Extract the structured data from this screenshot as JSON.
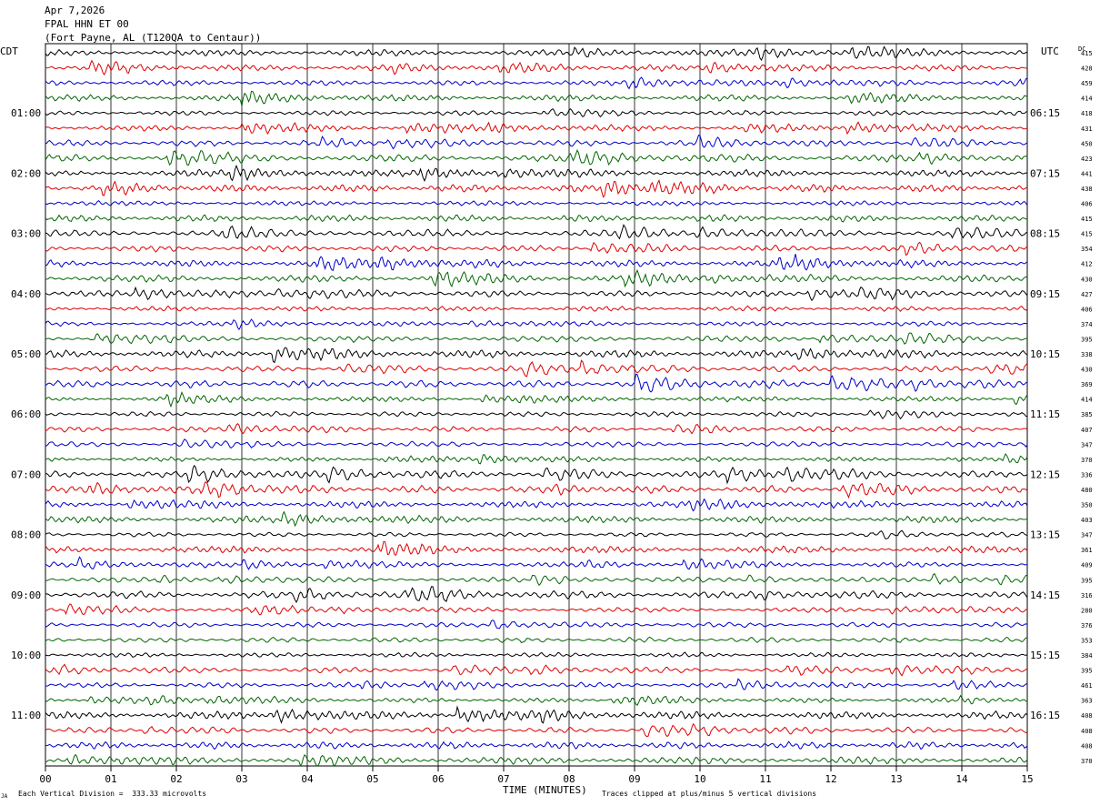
{
  "header": {
    "date": "Apr 7,2026",
    "station": "FPAL HHN ET 00",
    "location": "(Fort Payne, AL (T120QA to Centaur))"
  },
  "labels": {
    "left_tz": "CDT",
    "right_tz": "UTC",
    "dc": "DC",
    "xlabel": "TIME (MINUTES)",
    "scale_note": "Each Vertical Division =  333.33 microvolts",
    "clip_note": "Traces clipped at plus/minus 5 vertical divisions",
    "corner_mark": "JA"
  },
  "chart_data": {
    "type": "line",
    "xlim": [
      0,
      15
    ],
    "x_ticks": [
      "00",
      "01",
      "02",
      "03",
      "04",
      "05",
      "06",
      "07",
      "08",
      "09",
      "10",
      "11",
      "12",
      "13",
      "14",
      "15"
    ],
    "left_hour_labels": [
      "01:00",
      "02:00",
      "03:00",
      "04:00",
      "05:00",
      "06:00",
      "07:00",
      "08:00",
      "09:00",
      "10:00",
      "11:00"
    ],
    "right_hour_labels": [
      "06:15",
      "07:15",
      "08:15",
      "09:15",
      "10:15",
      "11:15",
      "12:15",
      "13:15",
      "14:15",
      "15:15",
      "16:15"
    ],
    "trace_count": 48,
    "trace_colors": [
      "#000000",
      "#dd0000",
      "#0000cc",
      "#006600"
    ],
    "dc_values": [
      "415",
      "428",
      "459",
      "414",
      "418",
      "431",
      "450",
      "423",
      "441",
      "438",
      "406",
      "415",
      "415",
      "354",
      "412",
      "430",
      "427",
      "406",
      "374",
      "395",
      "338",
      "430",
      "369",
      "414",
      "385",
      "407",
      "347",
      "370",
      "336",
      "480",
      "350",
      "403",
      "347",
      "361",
      "409",
      "395",
      "316",
      "280",
      "376",
      "353",
      "384",
      "395",
      "461",
      "363",
      "408",
      "408",
      "408",
      "370"
    ]
  }
}
